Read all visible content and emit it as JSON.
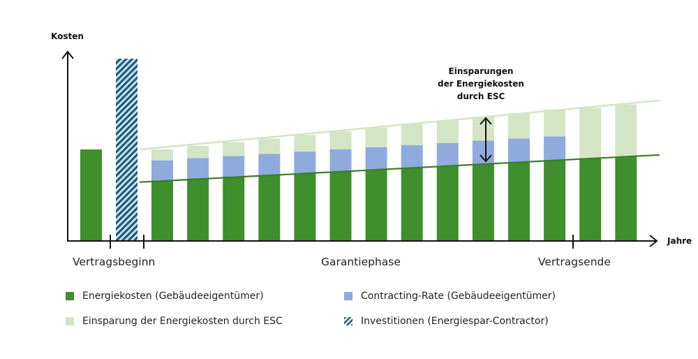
{
  "chart_data": {
    "type": "bar",
    "title": "",
    "ylabel": "Kosten",
    "xlabel": "Jahre",
    "ylim": [
      0,
      100
    ],
    "grid": false,
    "initial_energy_cost": 50,
    "investment": 100,
    "guarantee_years": 14,
    "contract_years": 12,
    "series": [
      {
        "name": "Energiekosten (Gebäudeeigentümer)",
        "key": "energy",
        "color": "#3f8f2c",
        "values": [
          33.0,
          34.0,
          35.0,
          36.0,
          37.0,
          38.0,
          39.0,
          40.0,
          41.0,
          42.0,
          43.0,
          44.0,
          45.0,
          46.0
        ]
      },
      {
        "name": "Contracting-Rate (Gebäudeeigentümer)",
        "key": "contracting",
        "color": "#8faadc",
        "values": [
          11.0,
          11.2,
          11.4,
          11.6,
          11.8,
          12.0,
          12.2,
          12.4,
          12.6,
          12.8,
          13.0,
          13.2,
          0,
          0
        ]
      },
      {
        "name": "Einsparung der Energiekosten durch ESC",
        "key": "savings",
        "color": "#d3e5c4",
        "values": [
          6.0,
          6.8,
          7.6,
          8.4,
          9.2,
          10.0,
          10.8,
          11.6,
          12.4,
          13.2,
          14.0,
          14.8,
          28.0,
          28.8
        ]
      }
    ],
    "baseline_line": {
      "start": 32,
      "end": 47
    },
    "reference_line": {
      "start": 50,
      "end": 77
    },
    "phase_labels": [
      "Vertragsbeginn",
      "Garantiephase",
      "Vertragsende"
    ],
    "annotation": [
      "Einsparungen",
      "der Energiekosten",
      "durch ESC"
    ],
    "legend": [
      {
        "label": "Energiekosten (Gebäudeeigentümer)",
        "color": "#3f8f2c",
        "pattern": "solid"
      },
      {
        "label": "Contracting-Rate (Gebäudeeigentümer)",
        "color": "#8faadc",
        "pattern": "solid"
      },
      {
        "label": "Einsparung der Energiekosten durch ESC",
        "color": "#d3e5c4",
        "pattern": "solid"
      },
      {
        "label": "Investitionen (Energiespar-Contractor)",
        "color": "#1f5a78",
        "pattern": "hatch"
      }
    ],
    "investment_color": "#1f5a78",
    "investment_bg": "#cfe8f5"
  }
}
